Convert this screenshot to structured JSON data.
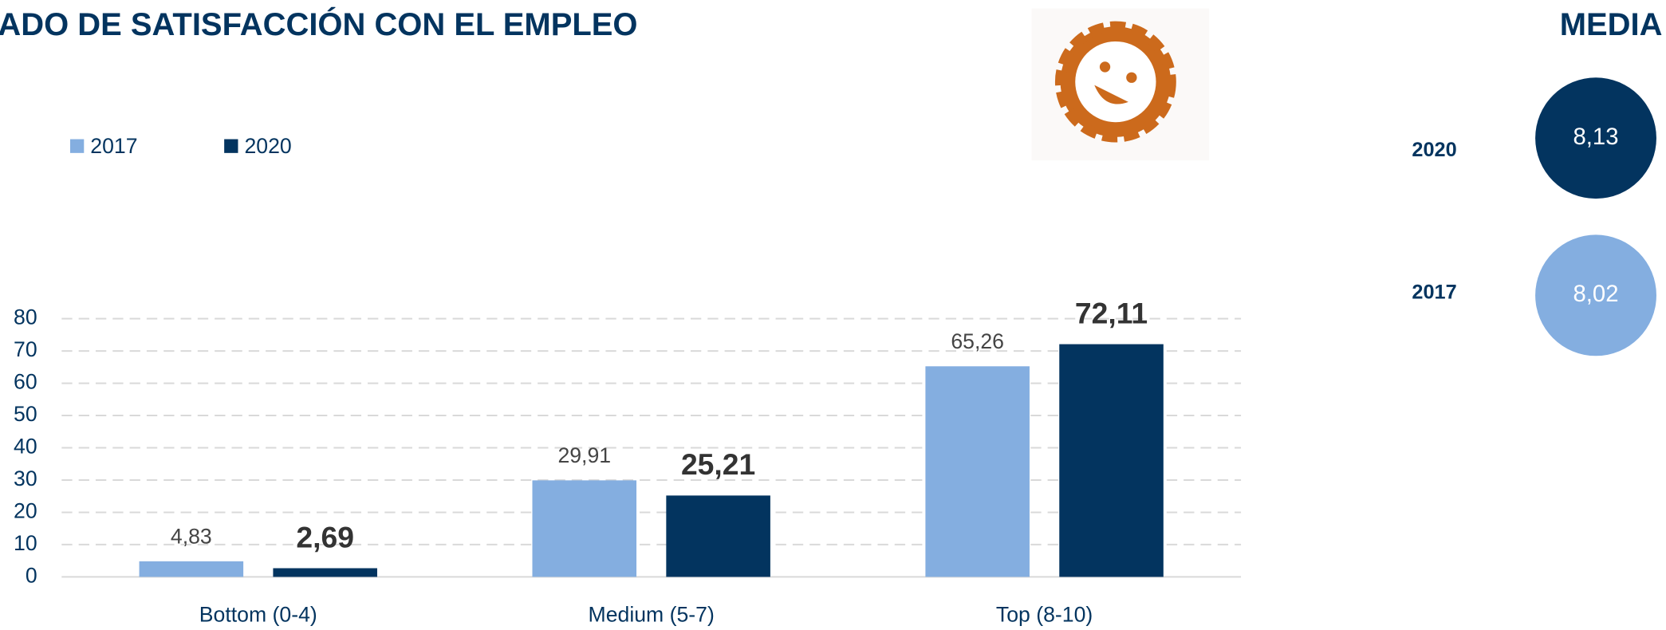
{
  "chart_data": {
    "type": "bar",
    "title": "ADO DE SATISFACCIÓN CON EL EMPLEO",
    "categories": [
      "Bottom (0-4)",
      "Medium (5-7)",
      "Top (8-10)"
    ],
    "series": [
      {
        "name": "2017",
        "color": "#84aee0",
        "values": [
          4.83,
          29.91,
          65.26
        ],
        "value_labels": [
          "4,83",
          "29,91",
          "65,26"
        ]
      },
      {
        "name": "2020",
        "color": "#03345f",
        "values": [
          2.69,
          25.21,
          72.11
        ],
        "value_labels": [
          "2,69",
          "25,21",
          "72,11"
        ]
      }
    ],
    "ylim": [
      0,
      80
    ],
    "yticks": [
      0,
      10,
      20,
      30,
      40,
      50,
      60,
      70,
      80
    ],
    "grid": true,
    "legend": "top-left"
  },
  "media": {
    "title": "MEDIA",
    "rows": [
      {
        "year": "2020",
        "value": "8,13"
      },
      {
        "year": "2017",
        "value": "8,02"
      }
    ]
  }
}
